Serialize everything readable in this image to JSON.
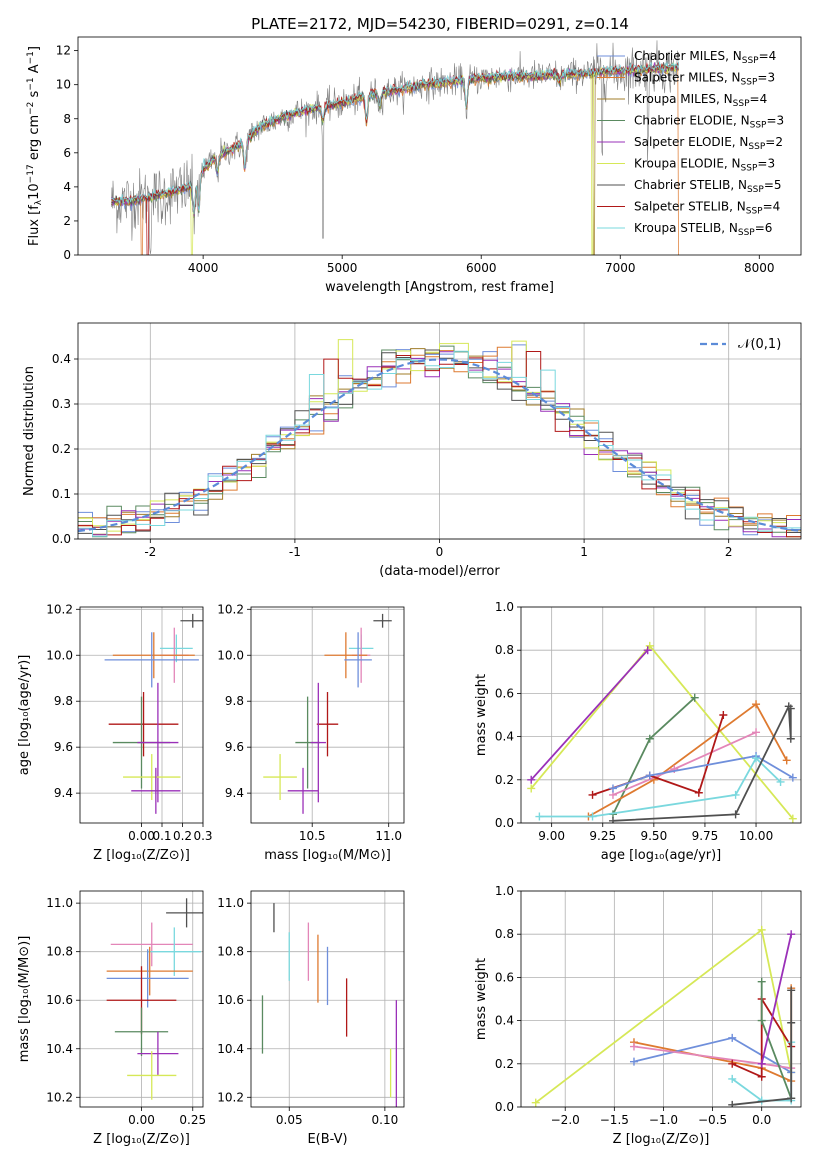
{
  "colors": {
    "Chabrier MILES": "#6f8fdb",
    "Salpeter MILES": "#de7a30",
    "Kroupa MILES": "#a07d2a",
    "Chabrier ELODIE": "#5a8a60",
    "Salpeter ELODIE": "#9a30b8",
    "Kroupa ELODIE": "#d6e857",
    "Chabrier STELIB": "#505050",
    "Salpeter STELIB": "#b01818",
    "Kroupa STELIB": "#7ad8de",
    "pink": "#e386b8",
    "data": "#808080",
    "grid": "#b0b0b0",
    "normal": "#5b8bd8"
  },
  "chart_data": [
    {
      "type": "line",
      "title": "PLATE=2172, MJD=54230, FIBERID=0291, z=0.14",
      "xlabel": "wavelength [Angstrom, rest frame]",
      "ylabel_parts": [
        "Flux [f",
        "λ",
        "10",
        "−17",
        " erg cm",
        "−2",
        " s",
        "−1",
        " A",
        "−1",
        "]"
      ],
      "xlim": [
        3100,
        8300
      ],
      "ylim": [
        0,
        12.8
      ],
      "xticks": [
        4000,
        5000,
        6000,
        7000,
        8000
      ],
      "yticks": [
        0,
        2,
        4,
        6,
        8,
        10,
        12
      ],
      "legend": [
        {
          "name": "Chabrier MILES",
          "n": "4"
        },
        {
          "name": "Salpeter MILES",
          "n": "3"
        },
        {
          "name": "Kroupa MILES",
          "n": "4"
        },
        {
          "name": "Chabrier ELODIE",
          "n": "3"
        },
        {
          "name": "Salpeter ELODIE",
          "n": "2"
        },
        {
          "name": "Kroupa ELODIE",
          "n": "3"
        },
        {
          "name": "Chabrier STELIB",
          "n": "5"
        },
        {
          "name": "Salpeter STELIB",
          "n": "4"
        },
        {
          "name": "Kroupa STELIB",
          "n": "6"
        }
      ],
      "legend_sub": "SSP",
      "legend_prefix": "N",
      "continuum": [
        [
          3340,
          3.1
        ],
        [
          3500,
          3.2
        ],
        [
          3700,
          3.5
        ],
        [
          3900,
          4.0
        ],
        [
          4000,
          5.0
        ],
        [
          4100,
          5.8
        ],
        [
          4200,
          6.2
        ],
        [
          4300,
          6.6
        ],
        [
          4400,
          7.5
        ],
        [
          4600,
          8.2
        ],
        [
          4800,
          8.6
        ],
        [
          5000,
          8.9
        ],
        [
          5200,
          9.4
        ],
        [
          5400,
          9.7
        ],
        [
          5600,
          10.0
        ],
        [
          5800,
          10.2
        ],
        [
          6000,
          10.4
        ],
        [
          6200,
          10.5
        ],
        [
          6400,
          10.5
        ],
        [
          6600,
          10.6
        ],
        [
          6800,
          10.7
        ],
        [
          7000,
          10.8
        ],
        [
          7200,
          10.9
        ],
        [
          7420,
          11.0
        ]
      ],
      "absorption_dips": [
        [
          3934,
          2.0
        ],
        [
          3968,
          2.1
        ],
        [
          4102,
          1.0
        ],
        [
          4300,
          1.5
        ],
        [
          4861,
          0.8
        ],
        [
          5175,
          1.5
        ],
        [
          5270,
          0.8
        ],
        [
          5893,
          1.6
        ],
        [
          6563,
          0.5
        ]
      ],
      "data_noise_spikes": [
        [
          3620,
          0.8
        ],
        [
          3700,
          0.5
        ],
        [
          3850,
          0.3
        ],
        [
          4861,
          2.4
        ],
        [
          6870,
          1.5
        ],
        [
          7200,
          1.3
        ]
      ],
      "model_drops": [
        [
          3560,
          "Salpeter MILES"
        ],
        [
          3600,
          "Salpeter STELIB"
        ],
        [
          3920,
          "Kroupa ELODIE"
        ],
        [
          6800,
          "Kroupa ELODIE"
        ],
        [
          6810,
          "Kroupa MILES"
        ],
        [
          7420,
          "Salpeter MILES"
        ]
      ]
    },
    {
      "type": "histogram",
      "xlabel": "(data-model)/error",
      "ylabel": "Normed distribution",
      "xlim": [
        -2.5,
        2.5
      ],
      "ylim": [
        0,
        0.48
      ],
      "xticks": [
        -2,
        -1,
        0,
        1,
        2
      ],
      "yticks": [
        0.0,
        0.1,
        0.2,
        0.3,
        0.4
      ],
      "bin_width": 0.1,
      "legend": "𝒩(0,1)",
      "series_peaks": [
        {
          "name": "Chabrier MILES",
          "max": 0.44
        },
        {
          "name": "Salpeter MILES",
          "max": 0.43
        },
        {
          "name": "Kroupa MILES",
          "max": 0.42
        },
        {
          "name": "Chabrier ELODIE",
          "max": 0.45
        },
        {
          "name": "Salpeter ELODIE",
          "max": 0.41
        },
        {
          "name": "Kroupa ELODIE",
          "max": 0.46
        },
        {
          "name": "Chabrier STELIB",
          "max": 0.42
        },
        {
          "name": "Salpeter STELIB",
          "max": 0.42
        },
        {
          "name": "Kroupa STELIB",
          "max": 0.4
        }
      ]
    },
    {
      "type": "errorbar",
      "xlabel": "Z [log₁₀(Z/Z⊙)]",
      "ylabel": "age  [log₁₀(age/yr)]",
      "xlim": [
        -0.3,
        0.3
      ],
      "ylim": [
        9.27,
        10.21
      ],
      "xticks": [
        0.0,
        0.1,
        0.2,
        0.3
      ],
      "xticklabels": [
        "0.00",
        "0.1",
        "0.2",
        "0.3"
      ],
      "yticks": [
        9.4,
        9.6,
        9.8,
        10.0,
        10.2
      ],
      "points": [
        {
          "name": "Chabrier STELIB",
          "x": 0.25,
          "xerr": 0.06,
          "y": 10.15,
          "yerr": 0.03
        },
        {
          "name": "Kroupa STELIB",
          "x": 0.17,
          "xerr": 0.08,
          "y": 10.03,
          "yerr": 0.06
        },
        {
          "name": "pink",
          "x": 0.16,
          "xerr": 0.07,
          "y": 10.0,
          "yerr": 0.12
        },
        {
          "name": "Salpeter MILES",
          "x": 0.06,
          "xerr": 0.2,
          "y": 10.0,
          "yerr": 0.1
        },
        {
          "name": "Chabrier MILES",
          "x": 0.05,
          "xerr": 0.23,
          "y": 9.98,
          "yerr": 0.12
        },
        {
          "name": "Salpeter STELIB",
          "x": 0.01,
          "xerr": 0.17,
          "y": 9.7,
          "yerr": 0.14
        },
        {
          "name": "Chabrier ELODIE",
          "x": 0.0,
          "xerr": 0.14,
          "y": 9.62,
          "yerr": 0.2
        },
        {
          "name": "Salpeter ELODIE",
          "x": 0.08,
          "xerr": 0.1,
          "y": 9.62,
          "yerr": 0.26
        },
        {
          "name": "Kroupa ELODIE",
          "x": 0.05,
          "xerr": 0.14,
          "y": 9.47,
          "yerr": 0.1
        },
        {
          "name": "Salpeter ELODIE",
          "x": 0.07,
          "xerr": 0.12,
          "y": 9.41,
          "yerr": 0.1
        }
      ]
    },
    {
      "type": "errorbar",
      "xlabel": "mass [log₁₀(M/M⊙)]",
      "ylabel": "",
      "xlim": [
        10.1,
        11.1
      ],
      "ylim": [
        9.27,
        10.21
      ],
      "xticks": [
        10.5,
        11.0
      ],
      "xticklabels": [
        "10.5",
        "11.0"
      ],
      "yticks": [
        9.4,
        9.6,
        9.8,
        10.0,
        10.2
      ],
      "points": [
        {
          "name": "Chabrier STELIB",
          "x": 10.96,
          "xerr": 0.06,
          "y": 10.15,
          "yerr": 0.03
        },
        {
          "name": "Kroupa STELIB",
          "x": 10.82,
          "xerr": 0.08,
          "y": 10.03,
          "yerr": 0.06
        },
        {
          "name": "pink",
          "x": 10.82,
          "xerr": 0.06,
          "y": 10.0,
          "yerr": 0.12
        },
        {
          "name": "Salpeter MILES",
          "x": 10.72,
          "xerr": 0.14,
          "y": 10.0,
          "yerr": 0.1
        },
        {
          "name": "Chabrier MILES",
          "x": 10.8,
          "xerr": 0.09,
          "y": 9.98,
          "yerr": 0.12
        },
        {
          "name": "Salpeter STELIB",
          "x": 10.6,
          "xerr": 0.07,
          "y": 9.7,
          "yerr": 0.14
        },
        {
          "name": "Chabrier ELODIE",
          "x": 10.47,
          "xerr": 0.08,
          "y": 9.62,
          "yerr": 0.2
        },
        {
          "name": "Salpeter ELODIE",
          "x": 10.54,
          "xerr": 0.05,
          "y": 9.62,
          "yerr": 0.26
        },
        {
          "name": "Kroupa ELODIE",
          "x": 10.29,
          "xerr": 0.11,
          "y": 9.47,
          "yerr": 0.1
        },
        {
          "name": "Salpeter ELODIE",
          "x": 10.44,
          "xerr": 0.1,
          "y": 9.41,
          "yerr": 0.1
        }
      ]
    },
    {
      "type": "line",
      "xlabel": "age  [log₁₀(age/yr)]",
      "ylabel": "mass weight",
      "xlim": [
        8.85,
        10.22
      ],
      "ylim": [
        0,
        1.0
      ],
      "xticks": [
        9.0,
        9.25,
        9.5,
        9.75,
        10.0
      ],
      "xticklabels": [
        "9.00",
        "9.25",
        "9.50",
        "9.75",
        "10.00"
      ],
      "yticks": [
        0.0,
        0.2,
        0.4,
        0.6,
        0.8,
        1.0
      ],
      "series": [
        {
          "name": "Kroupa ELODIE",
          "x": [
            8.9,
            9.48,
            10.18
          ],
          "y": [
            0.16,
            0.82,
            0.02
          ]
        },
        {
          "name": "Salpeter ELODIE",
          "x": [
            8.9,
            9.47
          ],
          "y": [
            0.2,
            0.8
          ]
        },
        {
          "name": "Chabrier ELODIE",
          "x": [
            9.3,
            9.48,
            9.7
          ],
          "y": [
            0.04,
            0.39,
            0.58
          ]
        },
        {
          "name": "Salpeter MILES",
          "x": [
            9.18,
            9.5,
            10.0,
            10.15
          ],
          "y": [
            0.03,
            0.2,
            0.55,
            0.29
          ]
        },
        {
          "name": "pink",
          "x": [
            9.3,
            9.6,
            10.0
          ],
          "y": [
            0.13,
            0.25,
            0.42
          ]
        },
        {
          "name": "Salpeter STELIB",
          "x": [
            9.2,
            9.48,
            9.72,
            9.84
          ],
          "y": [
            0.13,
            0.22,
            0.14,
            0.5
          ]
        },
        {
          "name": "Chabrier MILES",
          "x": [
            9.3,
            9.48,
            10.0,
            10.18
          ],
          "y": [
            0.16,
            0.22,
            0.31,
            0.21
          ]
        },
        {
          "name": "Kroupa STELIB",
          "x": [
            8.94,
            9.2,
            9.9,
            10.0,
            10.12
          ],
          "y": [
            0.03,
            0.03,
            0.13,
            0.3,
            0.19
          ]
        },
        {
          "name": "Chabrier STELIB",
          "x": [
            9.3,
            9.9,
            10.16,
            10.17,
            10.17
          ],
          "y": [
            0.01,
            0.04,
            0.54,
            0.39,
            0.53
          ]
        }
      ]
    },
    {
      "type": "errorbar",
      "xlabel": "Z [log₁₀(Z/Z⊙)]",
      "ylabel": "mass [log₁₀(M/M⊙)]",
      "xlim": [
        -0.3,
        0.3
      ],
      "ylim": [
        10.16,
        11.05
      ],
      "xticks": [
        0.0,
        0.25
      ],
      "xticklabels": [
        "0.00",
        "0.25"
      ],
      "yticks": [
        10.2,
        10.4,
        10.6,
        10.8,
        11.0
      ],
      "points": [
        {
          "name": "Chabrier STELIB",
          "x": 0.22,
          "xerr": 0.1,
          "y": 10.96,
          "yerr": 0.06
        },
        {
          "name": "pink",
          "x": 0.05,
          "xerr": 0.2,
          "y": 10.83,
          "yerr": 0.09
        },
        {
          "name": "Kroupa STELIB",
          "x": 0.16,
          "xerr": 0.13,
          "y": 10.8,
          "yerr": 0.1
        },
        {
          "name": "Salpeter MILES",
          "x": 0.04,
          "xerr": 0.21,
          "y": 10.72,
          "yerr": 0.1
        },
        {
          "name": "Chabrier MILES",
          "x": 0.03,
          "xerr": 0.2,
          "y": 10.69,
          "yerr": 0.12
        },
        {
          "name": "Salpeter STELIB",
          "x": 0.0,
          "xerr": 0.17,
          "y": 10.6,
          "yerr": 0.14
        },
        {
          "name": "Chabrier ELODIE",
          "x": 0.0,
          "xerr": 0.13,
          "y": 10.47,
          "yerr": 0.1
        },
        {
          "name": "Salpeter ELODIE",
          "x": 0.08,
          "xerr": 0.1,
          "y": 10.38,
          "yerr": 0.09
        },
        {
          "name": "Kroupa ELODIE",
          "x": 0.05,
          "xerr": 0.12,
          "y": 10.29,
          "yerr": 0.1
        }
      ]
    },
    {
      "type": "vline",
      "xlabel": "E(B-V)",
      "ylabel": "",
      "xlim": [
        0.03,
        0.11
      ],
      "ylim": [
        10.16,
        11.05
      ],
      "xticks": [
        0.05,
        0.1
      ],
      "xticklabels": [
        "0.05",
        "0.10"
      ],
      "yticks": [
        10.2,
        10.4,
        10.6,
        10.8,
        11.0
      ],
      "points": [
        {
          "name": "Chabrier STELIB",
          "x": 0.042,
          "y": 10.94,
          "yerr": 0.06
        },
        {
          "name": "pink",
          "x": 0.06,
          "y": 10.8,
          "yerr": 0.12
        },
        {
          "name": "Kroupa STELIB",
          "x": 0.05,
          "y": 10.78,
          "yerr": 0.1
        },
        {
          "name": "Salpeter MILES",
          "x": 0.065,
          "y": 10.73,
          "yerr": 0.14
        },
        {
          "name": "Chabrier MILES",
          "x": 0.07,
          "y": 10.7,
          "yerr": 0.12
        },
        {
          "name": "Salpeter STELIB",
          "x": 0.08,
          "y": 10.57,
          "yerr": 0.12
        },
        {
          "name": "Chabrier ELODIE",
          "x": 0.036,
          "y": 10.5,
          "yerr": 0.12
        },
        {
          "name": "Salpeter ELODIE",
          "x": 0.106,
          "y": 10.35,
          "yerr": 0.25
        },
        {
          "name": "Kroupa ELODIE",
          "x": 0.103,
          "y": 10.3,
          "yerr": 0.1
        }
      ]
    },
    {
      "type": "line",
      "xlabel": "Z [log₁₀(Z/Z⊙)]",
      "ylabel": "mass weight",
      "xlim": [
        -2.45,
        0.4
      ],
      "ylim": [
        0,
        1.0
      ],
      "xticks": [
        -2.0,
        -1.5,
        -1.0,
        -0.5,
        0.0
      ],
      "xticklabels": [
        "−2.0",
        "−1.5",
        "−1.0",
        "−0.5",
        "0.0"
      ],
      "yticks": [
        0.0,
        0.2,
        0.4,
        0.6,
        0.8,
        1.0
      ],
      "series": [
        {
          "name": "Kroupa ELODIE",
          "x": [
            -2.3,
            0.0,
            0.3
          ],
          "y": [
            0.02,
            0.82,
            0.16
          ]
        },
        {
          "name": "Salpeter MILES",
          "x": [
            -1.3,
            0.0,
            0.3,
            0.3
          ],
          "y": [
            0.3,
            0.18,
            0.12,
            0.55
          ]
        },
        {
          "name": "Chabrier MILES",
          "x": [
            -1.3,
            -0.3,
            0.3
          ],
          "y": [
            0.21,
            0.32,
            0.16
          ]
        },
        {
          "name": "pink",
          "x": [
            -1.3,
            0.0,
            0.3
          ],
          "y": [
            0.28,
            0.2,
            0.18
          ]
        },
        {
          "name": "Salpeter STELIB",
          "x": [
            -0.3,
            0.0,
            0.0,
            0.3
          ],
          "y": [
            0.2,
            0.14,
            0.5,
            0.28
          ]
        },
        {
          "name": "Chabrier ELODIE",
          "x": [
            0.0,
            0.0,
            0.3
          ],
          "y": [
            0.58,
            0.4,
            0.04
          ]
        },
        {
          "name": "Kroupa STELIB",
          "x": [
            -0.3,
            0.0,
            0.3,
            0.3
          ],
          "y": [
            0.13,
            0.03,
            0.03,
            0.3
          ]
        },
        {
          "name": "Chabrier STELIB",
          "x": [
            -0.3,
            0.3,
            0.3,
            0.3
          ],
          "y": [
            0.01,
            0.04,
            0.54,
            0.39
          ]
        },
        {
          "name": "Salpeter ELODIE",
          "x": [
            0.0,
            0.3
          ],
          "y": [
            0.2,
            0.8
          ]
        }
      ]
    }
  ]
}
